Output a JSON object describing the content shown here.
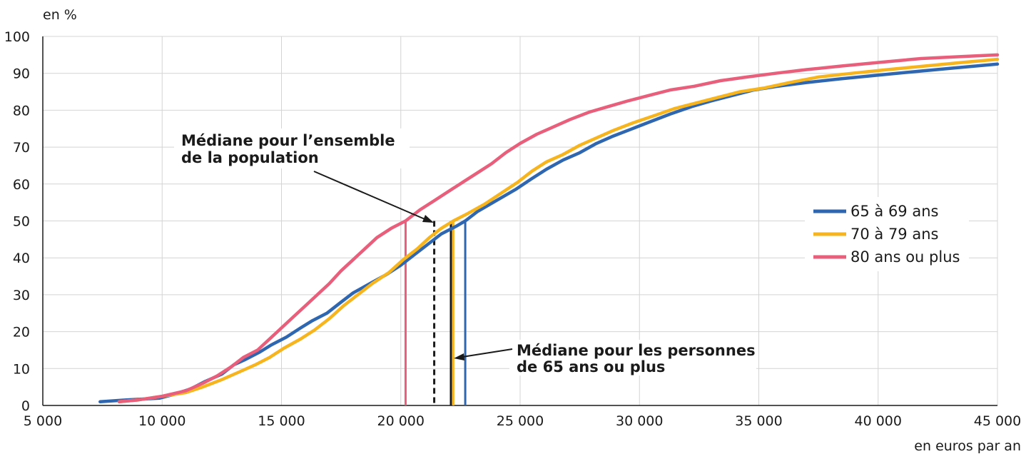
{
  "chart_data": {
    "type": "line",
    "y_unit_label": "en  %",
    "x_unit_label": "en  euros par an",
    "xlim": [
      5000,
      45000
    ],
    "ylim": [
      0,
      100
    ],
    "x_ticks": [
      5000,
      10000,
      15000,
      20000,
      25000,
      30000,
      35000,
      40000,
      45000
    ],
    "x_tick_labels": [
      "5 000",
      "10 000",
      "15 000",
      "20 000",
      "25 000",
      "30 000",
      "35 000",
      "40 000",
      "45 000"
    ],
    "y_ticks": [
      0,
      10,
      20,
      30,
      40,
      50,
      60,
      70,
      80,
      90,
      100
    ],
    "y_tick_labels": [
      "0",
      "10",
      "20",
      "30",
      "40",
      "50",
      "60",
      "70",
      "80",
      "90",
      "100"
    ],
    "grid": true,
    "legend_position": "right",
    "series": [
      {
        "name": "65 à 69 ans",
        "color": "#2f66b0",
        "median": 22700,
        "x": [
          7400,
          8500,
          9900,
          10500,
          11200,
          11800,
          12500,
          13000,
          13500,
          14100,
          14600,
          15200,
          15800,
          16300,
          16900,
          17500,
          18000,
          18700,
          19400,
          20000,
          20600,
          21200,
          21700,
          22300,
          22700,
          23200,
          24000,
          24800,
          25500,
          26100,
          26800,
          27500,
          28200,
          28900,
          29700,
          30500,
          31300,
          32200,
          33000,
          33900,
          34800,
          35800,
          37000,
          38400,
          40000,
          41600,
          43300,
          45000
        ],
        "y": [
          1,
          1.5,
          2,
          3,
          4.5,
          6.5,
          8.5,
          11,
          12.5,
          14.5,
          16.5,
          18.5,
          21,
          23,
          25,
          28,
          30.5,
          33,
          35.5,
          38,
          41,
          44,
          46.5,
          48.5,
          50,
          52.5,
          55.5,
          58.5,
          61.5,
          64,
          66.5,
          68.5,
          71,
          73,
          75,
          77,
          79,
          81,
          82.5,
          84,
          85.5,
          86.5,
          87.5,
          88.5,
          89.5,
          90.5,
          91.5,
          92.5
        ]
      },
      {
        "name": "70 à 79 ans",
        "color": "#f6b41f",
        "median": 22200,
        "x": [
          8200,
          9000,
          10000,
          11000,
          11700,
          12500,
          13200,
          13900,
          14500,
          15100,
          15800,
          16400,
          17000,
          17600,
          18200,
          18800,
          19500,
          20100,
          20700,
          21200,
          21700,
          22200,
          22800,
          23500,
          24200,
          24900,
          25500,
          26100,
          26800,
          27500,
          28200,
          28900,
          29700,
          30600,
          31500,
          32400,
          33300,
          34200,
          35200,
          36300,
          37500,
          38900,
          40400,
          42000,
          43600,
          45000
        ],
        "y": [
          1,
          1.5,
          2.5,
          3.5,
          5,
          7,
          9,
          11,
          13,
          15.5,
          18,
          20.5,
          23.5,
          27,
          30,
          33,
          36,
          39.5,
          42.5,
          45.5,
          48,
          50,
          52,
          54.5,
          57.5,
          60.5,
          63.5,
          66,
          68,
          70.5,
          72.5,
          74.5,
          76.5,
          78.5,
          80.5,
          82,
          83.5,
          85,
          86,
          87.5,
          89,
          90,
          91,
          92,
          93,
          93.8
        ]
      },
      {
        "name": "80 ans ou plus",
        "color": "#e85f7c",
        "median": 20200,
        "x": [
          8200,
          9000,
          10000,
          11000,
          11700,
          12300,
          12900,
          13400,
          14000,
          14500,
          15000,
          15500,
          16000,
          16500,
          17000,
          17500,
          18000,
          18500,
          19000,
          19600,
          20200,
          20800,
          21400,
          22000,
          22600,
          23200,
          23800,
          24400,
          25000,
          25700,
          26400,
          27100,
          27900,
          28700,
          29500,
          30400,
          31300,
          32300,
          33400,
          34500,
          35700,
          37000,
          38500,
          40100,
          41800,
          43400,
          45000
        ],
        "y": [
          1,
          1.5,
          2.5,
          4,
          6,
          8,
          10.5,
          13,
          15,
          18,
          21,
          24,
          27,
          30,
          33,
          36.5,
          39.5,
          42.5,
          45.5,
          48,
          50,
          53,
          55.5,
          58,
          60.5,
          63,
          65.5,
          68.5,
          71,
          73.5,
          75.5,
          77.5,
          79.5,
          81,
          82.5,
          84,
          85.5,
          86.5,
          88,
          89,
          90,
          91,
          92,
          93,
          94,
          94.5,
          95
        ]
      }
    ],
    "overall_median": 21400,
    "reference_medians_65plus": 22100,
    "annotations": [
      {
        "lines": [
          "Médiane pour l’ensemble",
          "de la population"
        ]
      },
      {
        "lines": [
          "Médiane pour les personnes",
          "de 65 ans ou plus"
        ]
      }
    ]
  }
}
